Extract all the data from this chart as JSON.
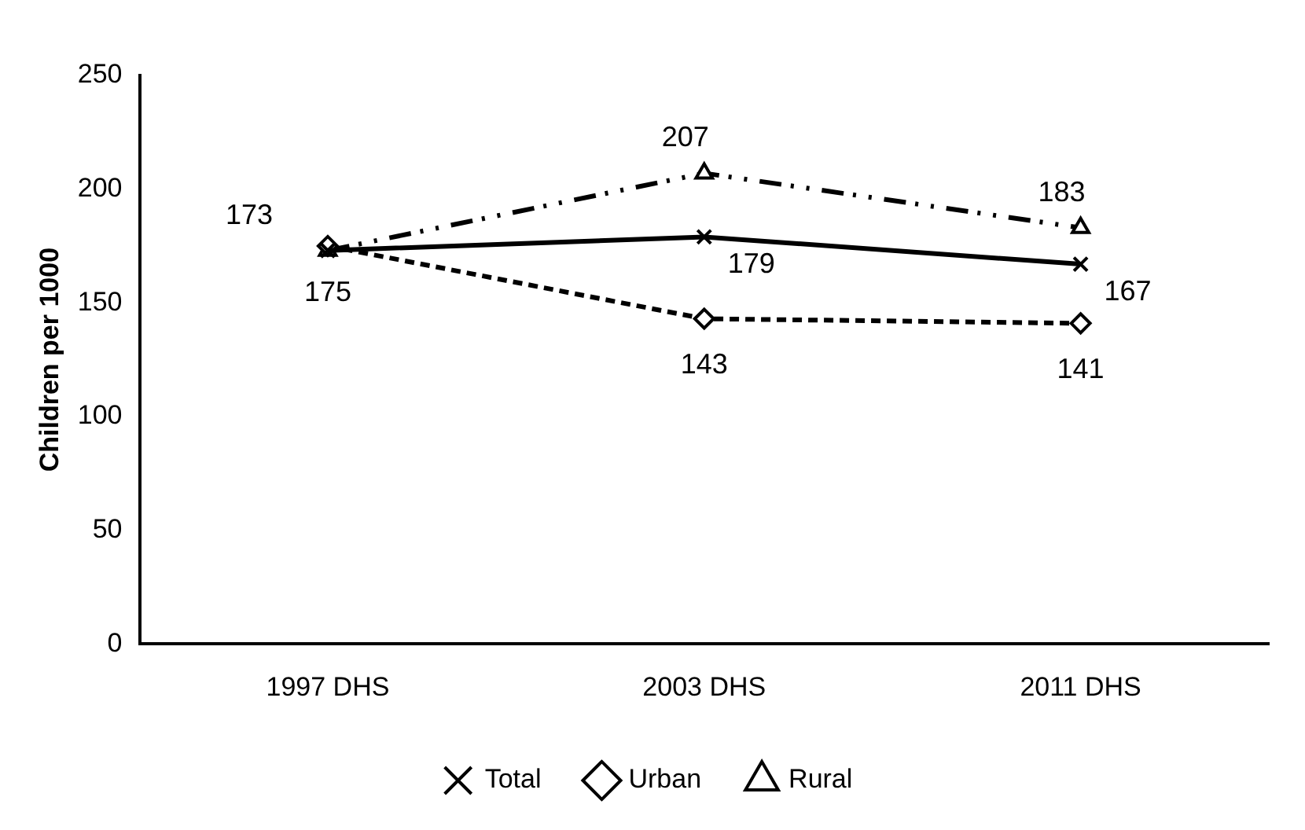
{
  "chart_data": {
    "type": "line",
    "ylabel": "Children per 1000",
    "categories": [
      "1997 DHS",
      "2003 DHS",
      "2011 DHS"
    ],
    "series": [
      {
        "name": "Total",
        "color": "#000000",
        "marker": "cross",
        "line_style": "solid",
        "values": [
          173,
          179,
          167
        ],
        "value_labels": [
          null,
          "179",
          "167"
        ]
      },
      {
        "name": "Urban",
        "color": "#000000",
        "marker": "diamond",
        "line_style": "dashed",
        "values": [
          175,
          143,
          141
        ],
        "value_labels": [
          "175",
          "143",
          "141"
        ]
      },
      {
        "name": "Rural",
        "color": "#000000",
        "marker": "triangle",
        "line_style": "dotted",
        "values": [
          173,
          207,
          183
        ],
        "value_labels": [
          "173",
          "207",
          "183"
        ]
      }
    ],
    "ylim": [
      0,
      250
    ],
    "yticks": [
      0,
      50,
      100,
      150,
      200,
      250
    ],
    "grid": false,
    "legend": "bottom"
  }
}
